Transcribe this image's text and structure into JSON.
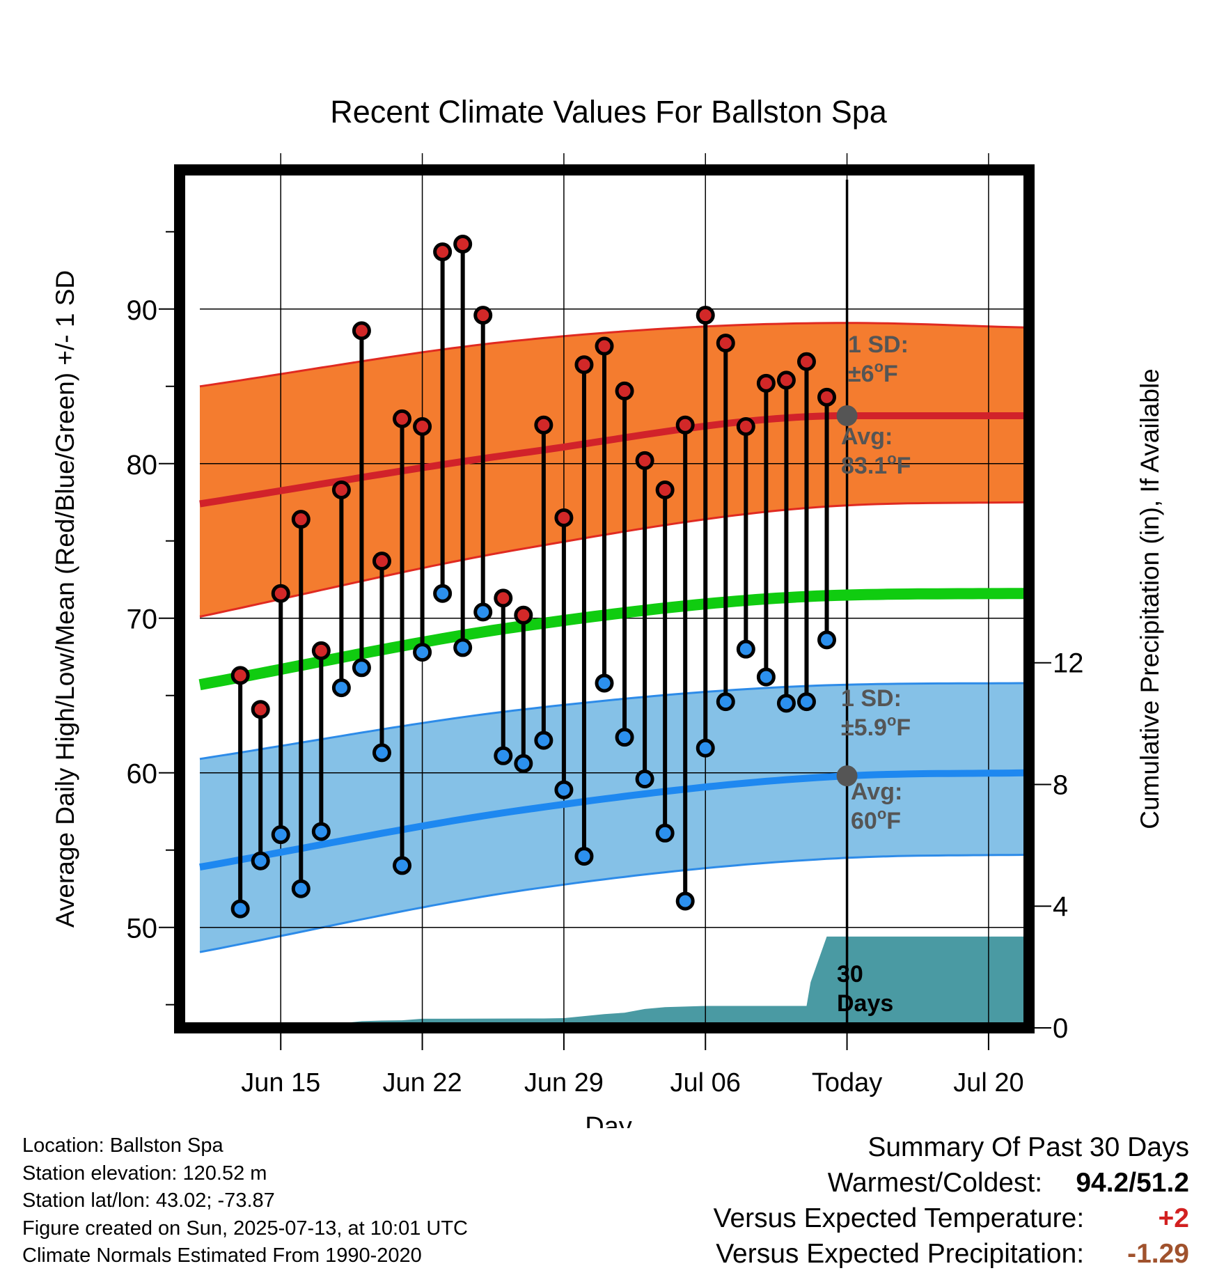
{
  "chart_data": {
    "type": "line",
    "title": "Recent Climate Values For Ballston Spa",
    "xlabel": "Day",
    "ylabel": "Average Daily High/Low/Mean (Red/Blue/Green) +/- 1 SD",
    "y2label": "Cumulative Precipitation (in), If Available",
    "ylim": [
      43.5,
      99
    ],
    "y2lim": [
      0,
      28.2
    ],
    "xlim": [
      -33,
      9
    ],
    "yticks": [
      50,
      60,
      70,
      80,
      90
    ],
    "y2ticks": [
      0,
      4,
      8,
      12
    ],
    "x_ticks": [
      {
        "x": -28,
        "label": "Jun 15"
      },
      {
        "x": -21,
        "label": "Jun 22"
      },
      {
        "x": -14,
        "label": "Jun 29"
      },
      {
        "x": -7,
        "label": "Jul 06"
      },
      {
        "x": 0,
        "label": "Today"
      },
      {
        "x": 7,
        "label": "Jul 20"
      }
    ],
    "grid": true,
    "days_offset": [
      -30,
      -29,
      -28,
      -27,
      -26,
      -25,
      -24,
      -23,
      -22,
      -21,
      -20,
      -19,
      -18,
      -17,
      -16,
      -15,
      -14,
      -13,
      -12,
      -11,
      -10,
      -9,
      -8,
      -7,
      -6,
      -5,
      -4,
      -3,
      -2,
      -1
    ],
    "highs": [
      66.3,
      64.1,
      71.6,
      76.4,
      67.9,
      78.3,
      88.6,
      73.7,
      82.9,
      82.4,
      93.7,
      94.2,
      89.6,
      71.3,
      70.2,
      82.5,
      76.5,
      86.4,
      87.6,
      84.7,
      80.2,
      78.3,
      82.5,
      89.6,
      87.8,
      82.4,
      85.2,
      85.4,
      86.6,
      84.3
    ],
    "lows": [
      51.2,
      54.3,
      56.0,
      52.5,
      56.2,
      65.5,
      66.8,
      61.3,
      54.0,
      67.8,
      71.6,
      68.1,
      70.4,
      61.1,
      60.6,
      62.1,
      58.9,
      54.6,
      65.8,
      62.3,
      59.6,
      56.1,
      51.7,
      61.6,
      64.6,
      68.0,
      66.2,
      64.5,
      64.6,
      68.6
    ],
    "normal_series": [
      {
        "name": "high",
        "x": [
          -32,
          -16,
          0,
          9
        ],
        "values": [
          77.4,
          80.7,
          83.1,
          83.1
        ]
      },
      {
        "name": "mean",
        "x": [
          -32,
          -16,
          0,
          9
        ],
        "values": [
          65.7,
          69.5,
          71.5,
          71.6
        ]
      },
      {
        "name": "low",
        "x": [
          -32,
          -16,
          0,
          9
        ],
        "values": [
          53.9,
          57.6,
          59.8,
          60.0
        ]
      }
    ],
    "high_band": {
      "x": [
        -32,
        -16,
        0,
        9
      ],
      "upper": [
        85.0,
        88.0,
        89.1,
        88.8
      ],
      "lower": [
        70.1,
        74.5,
        77.3,
        77.5
      ]
    },
    "low_band": {
      "x": [
        -32,
        -16,
        0,
        9
      ],
      "upper": [
        60.9,
        64.1,
        65.7,
        65.8
      ],
      "lower": [
        48.4,
        52.4,
        54.5,
        54.7
      ]
    },
    "precip_cumulative": {
      "x": [
        -32,
        -27,
        -25,
        -24,
        -23,
        -22,
        -21,
        -15,
        -14,
        -12,
        -11,
        -10,
        -9,
        -8,
        -7,
        -6,
        -5,
        -4,
        -3,
        -2,
        -1.8,
        -1,
        9
      ],
      "values": [
        0,
        0,
        0.15,
        0.22,
        0.24,
        0.25,
        0.3,
        0.31,
        0.32,
        0.45,
        0.5,
        0.62,
        0.68,
        0.7,
        0.72,
        0.72,
        0.72,
        0.72,
        0.72,
        0.72,
        1.5,
        3.0,
        3.0
      ]
    },
    "annotations": {
      "high_sd": [
        "1 SD:",
        "±6°F"
      ],
      "high_avg": [
        "Avg:",
        "83.1°F"
      ],
      "low_sd": [
        "1 SD:",
        "±5.9°F"
      ],
      "low_avg": [
        "Avg:",
        "60°F"
      ],
      "precip_days": [
        "30",
        "Days"
      ]
    },
    "colors": {
      "high_band": "#f47c2f",
      "high_edge": "#e02a21",
      "high_normal": "#d1222a",
      "mean_normal": "#10cc10",
      "low_band": "#85c1e7",
      "low_edge": "#2d8be8",
      "low_normal": "#1e88f0",
      "precip": "#4a9aa3",
      "high_dot": "#d22828",
      "low_dot": "#2c90ee",
      "annotation": "#555555",
      "today_dot": "#555555",
      "positive": "#d22020",
      "negative": "#a0522d"
    }
  },
  "info": {
    "location": "Location: Ballston Spa",
    "elevation": "Station elevation: 120.52 m",
    "latlon": "Station lat/lon: 43.02; -73.87",
    "created": "Figure created on Sun, 2025-07-13, at 10:01 UTC",
    "normals": "Climate Normals Estimated From 1990-2020"
  },
  "summary": {
    "heading": "Summary Of Past 30 Days",
    "warm_cold_label": "Warmest/Coldest:",
    "warm_cold_value": "94.2/51.2",
    "temp_label": "Versus Expected Temperature:",
    "temp_value": "+2",
    "precip_label": "Versus Expected Precipitation:",
    "precip_value": "-1.29"
  }
}
